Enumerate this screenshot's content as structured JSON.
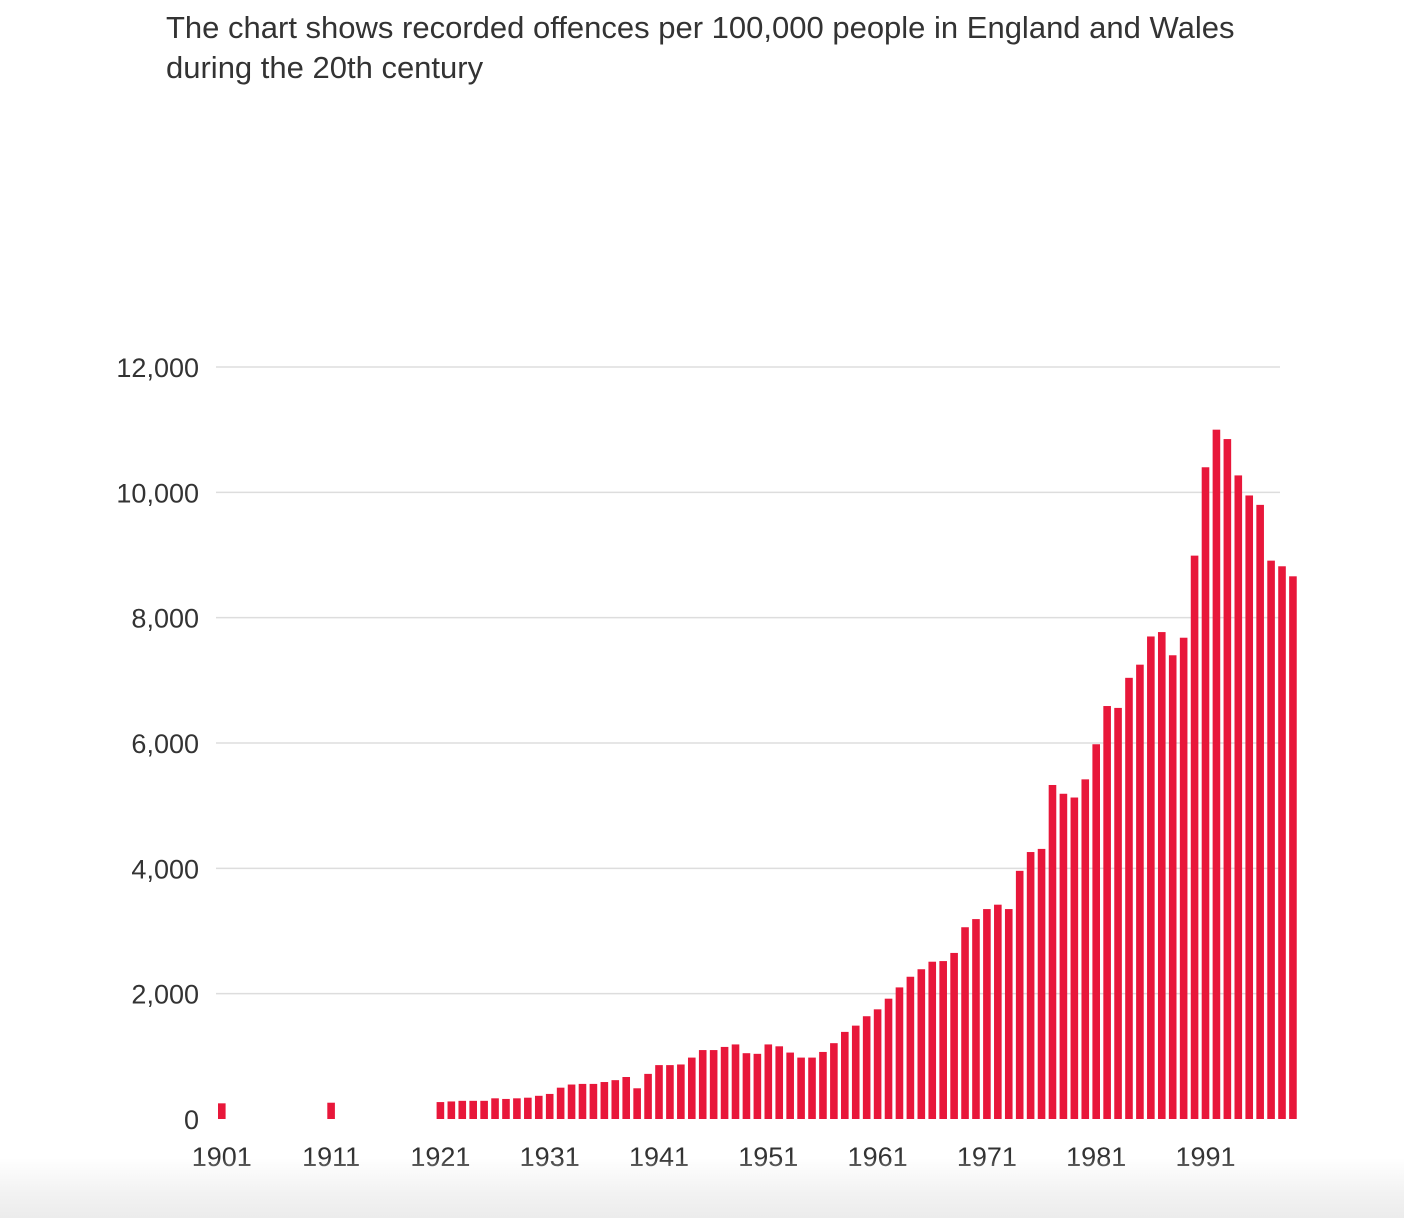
{
  "subtitle": "The chart shows recorded offences per 100,000 people in England and Wales during the 20th century",
  "colors": {
    "bar": "#e8173a",
    "grid": "#dddddd",
    "tick_text": "#333333"
  },
  "chart_data": {
    "type": "bar",
    "title": "",
    "xlabel": "",
    "ylabel": "",
    "ylim": [
      0,
      12000
    ],
    "y_ticks": [
      0,
      2000,
      4000,
      6000,
      8000,
      10000,
      12000
    ],
    "y_tick_labels": [
      "0",
      "2,000",
      "4,000",
      "6,000",
      "8,000",
      "10,000",
      "12,000"
    ],
    "x_ticks": [
      1901,
      1911,
      1921,
      1931,
      1941,
      1951,
      1961,
      1971,
      1981,
      1991
    ],
    "x_tick_labels": [
      "1901",
      "1911",
      "1921",
      "1931",
      "1941",
      "1951",
      "1961",
      "1971",
      "1981",
      "1991"
    ],
    "grid": true,
    "categories": [
      1901,
      1902,
      1903,
      1904,
      1905,
      1906,
      1907,
      1908,
      1909,
      1910,
      1911,
      1912,
      1913,
      1914,
      1915,
      1916,
      1917,
      1918,
      1919,
      1920,
      1921,
      1922,
      1923,
      1924,
      1925,
      1926,
      1927,
      1928,
      1929,
      1930,
      1931,
      1932,
      1933,
      1934,
      1935,
      1936,
      1937,
      1938,
      1939,
      1940,
      1941,
      1942,
      1943,
      1944,
      1945,
      1946,
      1947,
      1948,
      1949,
      1950,
      1951,
      1952,
      1953,
      1954,
      1955,
      1956,
      1957,
      1958,
      1959,
      1960,
      1961,
      1962,
      1963,
      1964,
      1965,
      1966,
      1967,
      1968,
      1969,
      1970,
      1971,
      1972,
      1973,
      1974,
      1975,
      1976,
      1977,
      1978,
      1979,
      1980,
      1981,
      1982,
      1983,
      1984,
      1985,
      1986,
      1987,
      1988,
      1989,
      1990,
      1991,
      1992,
      1993,
      1994,
      1995,
      1996,
      1997,
      1998,
      1999
    ],
    "values": [
      250,
      null,
      null,
      null,
      null,
      null,
      null,
      null,
      null,
      null,
      260,
      null,
      null,
      null,
      null,
      null,
      null,
      null,
      null,
      null,
      270,
      280,
      290,
      290,
      290,
      330,
      320,
      330,
      340,
      370,
      400,
      500,
      550,
      560,
      560,
      590,
      620,
      670,
      490,
      720,
      860,
      860,
      870,
      980,
      1100,
      1100,
      1150,
      1190,
      1050,
      1040,
      1190,
      1160,
      1060,
      980,
      980,
      1070,
      1210,
      1390,
      1490,
      1640,
      1750,
      1920,
      2100,
      2270,
      2390,
      2510,
      2520,
      2650,
      3060,
      3190,
      3350,
      3420,
      3350,
      3960,
      4260,
      4310,
      5330,
      5190,
      5130,
      5420,
      5980,
      6590,
      6560,
      7040,
      7250,
      7700,
      7770,
      7400,
      7680,
      8990,
      10400,
      11000,
      10850,
      10270,
      9950,
      9800,
      8910,
      8820,
      8660
    ]
  }
}
